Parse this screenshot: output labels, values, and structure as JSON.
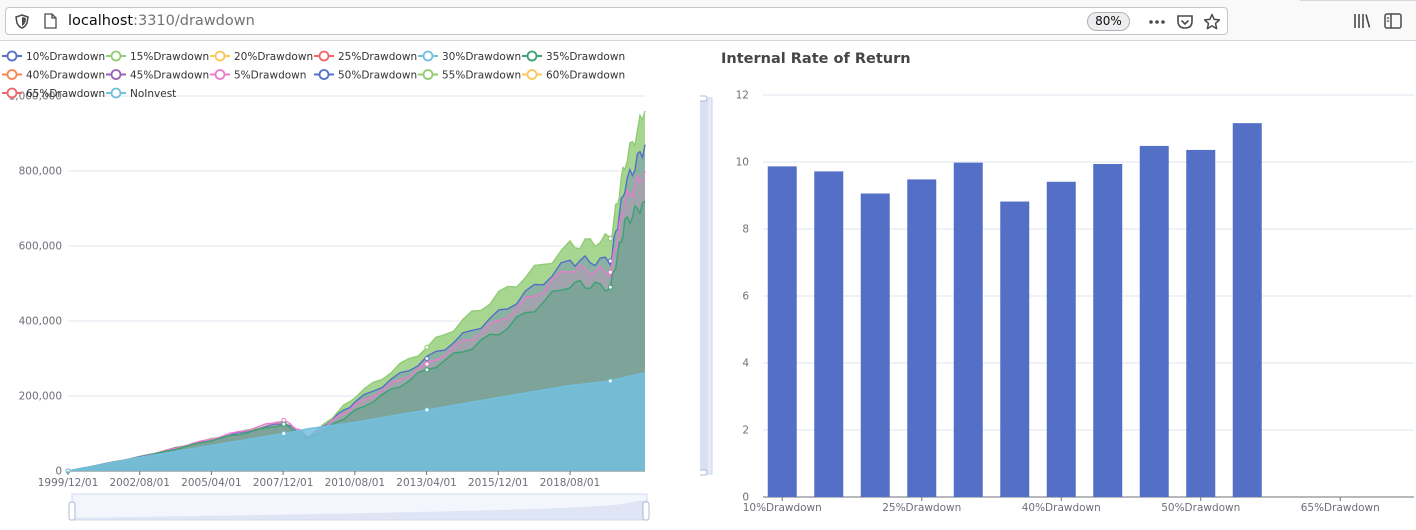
{
  "browser": {
    "url_host": "localhost",
    "url_rest": ":3310/drawdown",
    "zoom": "80%",
    "icons": [
      "shield-icon",
      "page-icon",
      "more-icon",
      "pocket-icon",
      "bookmark-star-icon",
      "library-icon",
      "sidebar-icon"
    ]
  },
  "colors": {
    "palette": [
      "#5470c6",
      "#91cc75",
      "#fac858",
      "#ee6666",
      "#73c0de",
      "#3ba272",
      "#fc8452",
      "#9a60b4",
      "#ea7ccc"
    ],
    "bar": "#5470c6",
    "axis": "#6e7079",
    "grid": "#e0e6f1",
    "datazoom": "#d2dbee"
  },
  "left_chart": {
    "legend": [
      {
        "name": "10%Drawdown",
        "color": "#5470c6"
      },
      {
        "name": "15%Drawdown",
        "color": "#91cc75"
      },
      {
        "name": "20%Drawdown",
        "color": "#fac858"
      },
      {
        "name": "25%Drawdown",
        "color": "#ee6666"
      },
      {
        "name": "30%Drawdown",
        "color": "#73c0de"
      },
      {
        "name": "35%Drawdown",
        "color": "#3ba272"
      },
      {
        "name": "40%Drawdown",
        "color": "#fc8452"
      },
      {
        "name": "45%Drawdown",
        "color": "#9a60b4"
      },
      {
        "name": "5%Drawdown",
        "color": "#ea7ccc"
      },
      {
        "name": "50%Drawdown",
        "color": "#5470c6"
      },
      {
        "name": "55%Drawdown",
        "color": "#91cc75"
      },
      {
        "name": "60%Drawdown",
        "color": "#fac858"
      },
      {
        "name": "65%Drawdown",
        "color": "#ee6666"
      },
      {
        "name": "NoInvest",
        "color": "#73c0de"
      }
    ],
    "y_ticks": [
      "0",
      "200,000",
      "400,000",
      "600,000",
      "800,000",
      "1,000,000"
    ],
    "x_ticks": [
      "1999/12/01",
      "2002/08/01",
      "2005/04/01",
      "2007/12/01",
      "2010/08/01",
      "2013/04/01",
      "2015/12/01",
      "2018/08/01"
    ]
  },
  "chart_data": [
    {
      "type": "area",
      "title": "",
      "xlabel": "",
      "ylabel": "",
      "ylim": [
        0,
        1000000
      ],
      "x": [
        "1999/12/01",
        "2002/08/01",
        "2005/04/01",
        "2007/12/01",
        "2008/12/01",
        "2010/08/01",
        "2013/04/01",
        "2015/12/01",
        "2018/08/01",
        "2020/03/01",
        "2020/08/01",
        "2021/06/01"
      ],
      "grid": true,
      "legend": "top-left",
      "series": [
        {
          "name": "15%Drawdown",
          "values": [
            0,
            38000,
            85000,
            132000,
            88000,
            200000,
            330000,
            470000,
            600000,
            620000,
            820000,
            960000
          ]
        },
        {
          "name": "10%Drawdown",
          "values": [
            0,
            37000,
            84000,
            128000,
            90000,
            185000,
            300000,
            420000,
            560000,
            560000,
            760000,
            870000
          ]
        },
        {
          "name": "5%Drawdown",
          "values": [
            0,
            36000,
            86000,
            135000,
            92000,
            175000,
            285000,
            400000,
            540000,
            530000,
            720000,
            800000
          ]
        },
        {
          "name": "35%Drawdown",
          "values": [
            0,
            35000,
            82000,
            125000,
            85000,
            160000,
            270000,
            370000,
            500000,
            490000,
            660000,
            720000
          ]
        },
        {
          "name": "NoInvest",
          "values": [
            0,
            36000,
            68000,
            100000,
            113000,
            130000,
            163000,
            196000,
            228000,
            240000,
            250000,
            262000
          ]
        }
      ]
    },
    {
      "type": "bar",
      "title": "Internal Rate of Return",
      "categories": [
        "10%Drawdown",
        "15%Drawdown",
        "20%Drawdown",
        "25%Drawdown",
        "30%Drawdown",
        "35%Drawdown",
        "40%Drawdown",
        "45%Drawdown",
        "5%Drawdown",
        "50%Drawdown",
        "55%Drawdown",
        "60%Drawdown",
        "65%Drawdown",
        "NoInvest"
      ],
      "values": [
        9.87,
        9.72,
        9.06,
        9.48,
        9.98,
        8.82,
        9.41,
        9.94,
        10.48,
        10.36,
        11.16,
        null,
        null,
        null
      ],
      "ylim": [
        0,
        12
      ],
      "y_ticks": [
        "0",
        "2",
        "4",
        "6",
        "8",
        "10",
        "12"
      ],
      "x_tick_labels": [
        "10%Drawdown",
        "25%Drawdown",
        "40%Drawdown",
        "50%Drawdown",
        "65%Drawdown"
      ],
      "xlabel": "",
      "ylabel": "",
      "grid": true
    }
  ]
}
